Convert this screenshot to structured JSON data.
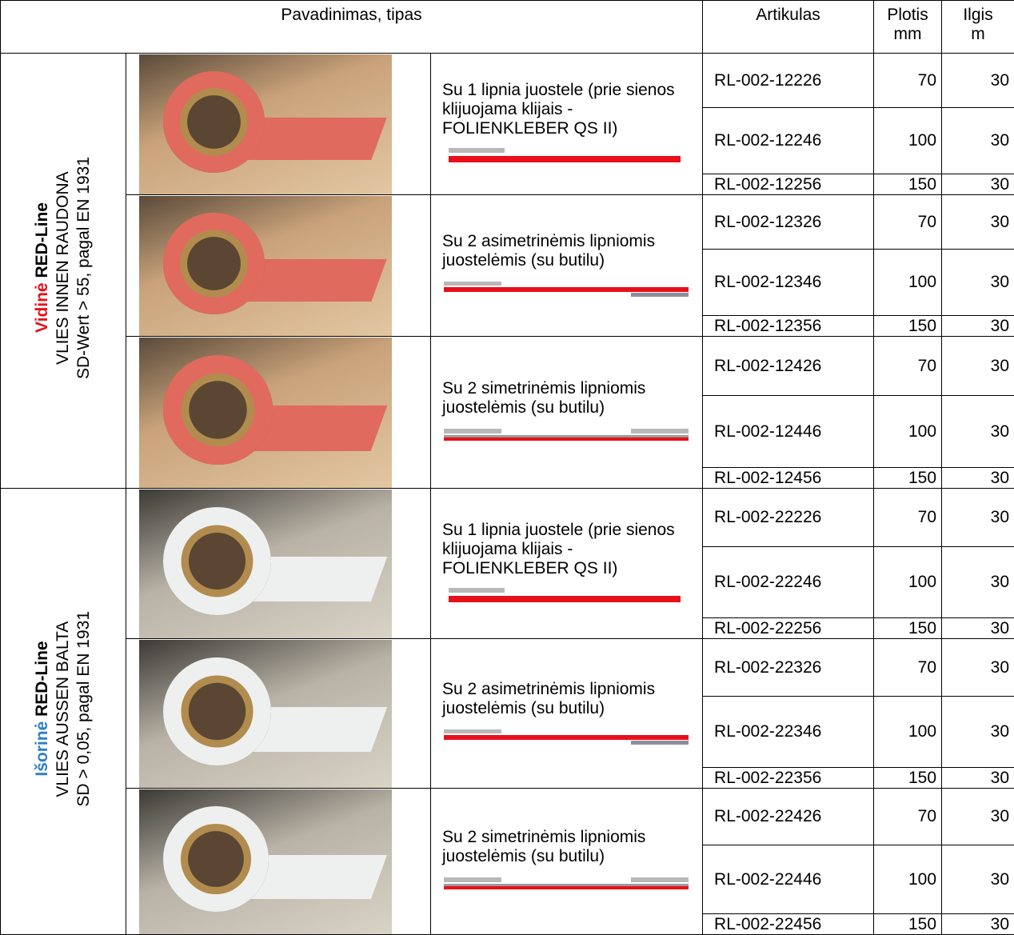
{
  "header": {
    "name": "Pavadinimas, tipas",
    "article": "Artikulas",
    "width": [
      "Plotis",
      "mm"
    ],
    "length": [
      "Ilgis",
      "m"
    ]
  },
  "groups": [
    {
      "prefix": "Vidinė",
      "brand": "RED-Line",
      "line2": "VLIES INNEN RAUDONA",
      "line3": "SD-Wert > 55, pagal EN 1931",
      "types": [
        {
          "description": "Su 1 lipnia juostele (prie sienos klijuojama klijais - FOLIENKLEBER QS II)",
          "rows": [
            [
              "RL-002-12226",
              70,
              30
            ],
            [
              "RL-002-12246",
              100,
              30
            ],
            [
              "RL-002-12256",
              150,
              30
            ]
          ]
        },
        {
          "description": "Su 2 asimetrinėmis lipniomis juostelėmis (su butilu)",
          "rows": [
            [
              "RL-002-12326",
              70,
              30
            ],
            [
              "RL-002-12346",
              100,
              30
            ],
            [
              "RL-002-12356",
              150,
              30
            ]
          ]
        },
        {
          "description": "Su 2 simetrinėmis lipniomis juostelėmis (su butilu)",
          "rows": [
            [
              "RL-002-12426",
              70,
              30
            ],
            [
              "RL-002-12446",
              100,
              30
            ],
            [
              "RL-002-12456",
              150,
              30
            ]
          ]
        }
      ]
    },
    {
      "prefix": "Išorinė",
      "brand": "RED-Line",
      "line2": "VLIES AUSSEN BALTA",
      "line3": "SD > 0,05, pagal EN 1931",
      "types": [
        {
          "description": "Su 1 lipnia juostele (prie sienos klijuojama klijais - FOLIENKLEBER QS II)",
          "rows": [
            [
              "RL-002-22226",
              70,
              30
            ],
            [
              "RL-002-22246",
              100,
              30
            ],
            [
              "RL-002-22256",
              150,
              30
            ]
          ]
        },
        {
          "description": "Su 2 asimetrinėmis lipniomis juostelėmis (su butilu)",
          "rows": [
            [
              "RL-002-22326",
              70,
              30
            ],
            [
              "RL-002-22346",
              100,
              30
            ],
            [
              "RL-002-22356",
              150,
              30
            ]
          ]
        },
        {
          "description": "Su 2 simetrinėmis lipniomis juostelėmis (su butilu)",
          "rows": [
            [
              "RL-002-22426",
              70,
              30
            ],
            [
              "RL-002-22446",
              100,
              30
            ],
            [
              "RL-002-22456",
              150,
              30
            ]
          ]
        }
      ]
    }
  ]
}
